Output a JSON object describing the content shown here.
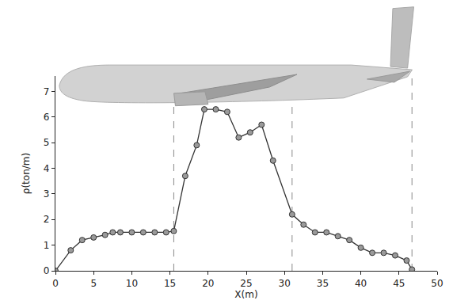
{
  "chart_data": {
    "type": "line",
    "x_label": "X(m)",
    "y_label": "ρ(ton/m)",
    "x": [
      0,
      2,
      3.5,
      5,
      6.5,
      7.5,
      8.5,
      10,
      11.5,
      13,
      14.5,
      15.5,
      17,
      18.5,
      19.5,
      21,
      22.5,
      24,
      25.5,
      27,
      28.5,
      31,
      32.5,
      34,
      35.5,
      37,
      38.5,
      40,
      41.5,
      43,
      44.5,
      46,
      46.7
    ],
    "values": [
      0,
      0.8,
      1.2,
      1.3,
      1.4,
      1.5,
      1.5,
      1.5,
      1.5,
      1.5,
      1.5,
      1.55,
      3.7,
      4.9,
      6.3,
      6.3,
      6.2,
      5.2,
      5.4,
      5.7,
      4.3,
      2.2,
      1.8,
      1.5,
      1.5,
      1.35,
      1.2,
      0.9,
      0.7,
      0.7,
      0.6,
      0.4,
      0.05
    ],
    "color": "#333333",
    "marker": "circle",
    "reference_lines": [
      15.5,
      31,
      46.7
    ],
    "xlim": [
      0,
      50
    ],
    "xticks": [
      0,
      5,
      10,
      15,
      20,
      25,
      30,
      35,
      40,
      45,
      50
    ],
    "ylim": [
      0,
      7.6
    ],
    "yticks": [
      0,
      1,
      2,
      3,
      4,
      5,
      6,
      7
    ],
    "grid": false
  }
}
